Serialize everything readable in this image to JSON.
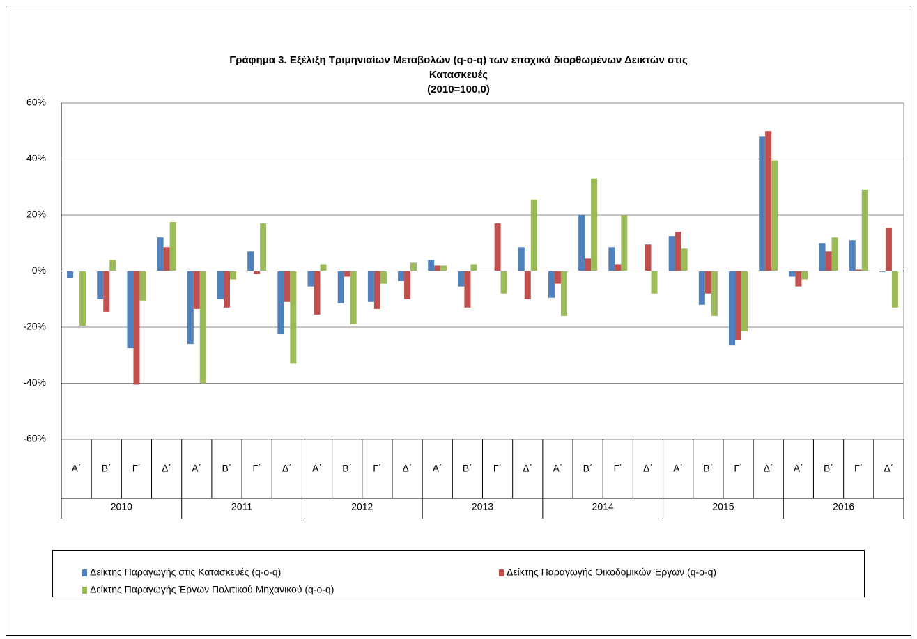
{
  "chart_data": {
    "type": "bar",
    "title": [
      "Γράφημα 3. Εξέλιξη Τριμηνιαίων Μεταβολών (q-o-q) των εποχικά διορθωμένων Δεικτών στις",
      "Κατασκευές",
      "(2010=100,0)"
    ],
    "categories": [
      "Α΄",
      "Β΄",
      "Γ΄",
      "Δ΄",
      "Α΄",
      "Β΄",
      "Γ΄",
      "Δ΄",
      "Α΄",
      "Β΄",
      "Γ΄",
      "Δ΄",
      "Α΄",
      "Β΄",
      "Γ΄",
      "Δ΄",
      "Α΄",
      "Β΄",
      "Γ΄",
      "Δ΄",
      "Α΄",
      "Β΄",
      "Γ΄",
      "Δ΄",
      "Α΄",
      "Β΄",
      "Γ΄",
      "Δ΄"
    ],
    "groups": [
      "2010",
      "2011",
      "2012",
      "2013",
      "2014",
      "2015",
      "2016"
    ],
    "series": [
      {
        "name": "Δείκτης Παραγωγής στις Κατασκευές (q-o-q)",
        "color": "#4f81bd",
        "values": [
          -2.5,
          -10,
          -27.5,
          12,
          -26,
          -10,
          7,
          -22.5,
          -5.5,
          -11.5,
          -11,
          -3.5,
          4,
          -5.5,
          0,
          8.5,
          -9.5,
          20,
          8.5,
          0,
          12.5,
          -12,
          -26.5,
          48,
          -2,
          10,
          11,
          -0.3
        ]
      },
      {
        "name": "Δείκτης Παραγωγής Οικοδομικών Έργων (q-o-q)",
        "color": "#c0504d",
        "values": [
          0,
          -14.5,
          -40.5,
          8.5,
          -13.5,
          -13,
          -1,
          -11,
          -15.5,
          -2,
          -13.5,
          -10,
          2,
          -13,
          17,
          -10,
          -4.5,
          4.5,
          2.5,
          9.5,
          14,
          -8,
          -24.5,
          50,
          -5.5,
          7,
          0.5,
          15.5
        ]
      },
      {
        "name": "Δείκτης Παραγωγής Έργων Πολιτικού Μηχανικού (q-o-q)",
        "color": "#9bbb59",
        "values": [
          -19.5,
          4,
          -10.5,
          17.5,
          -40,
          -3,
          17,
          -33,
          2.5,
          -19,
          -4.5,
          3,
          2,
          2.5,
          -8,
          25.5,
          -16,
          33,
          20,
          -8,
          8,
          -16,
          -21.5,
          39.5,
          -3,
          12,
          29,
          -13
        ]
      }
    ],
    "ylim": [
      -60,
      60
    ],
    "yticks": [
      {
        "value": -60,
        "label": "-60%"
      },
      {
        "value": -40,
        "label": "-40%"
      },
      {
        "value": -20,
        "label": "-20%"
      },
      {
        "value": 0,
        "label": "0%"
      },
      {
        "value": 20,
        "label": "20%"
      },
      {
        "value": 40,
        "label": "40%"
      },
      {
        "value": 60,
        "label": "60%"
      }
    ],
    "grid": true
  }
}
